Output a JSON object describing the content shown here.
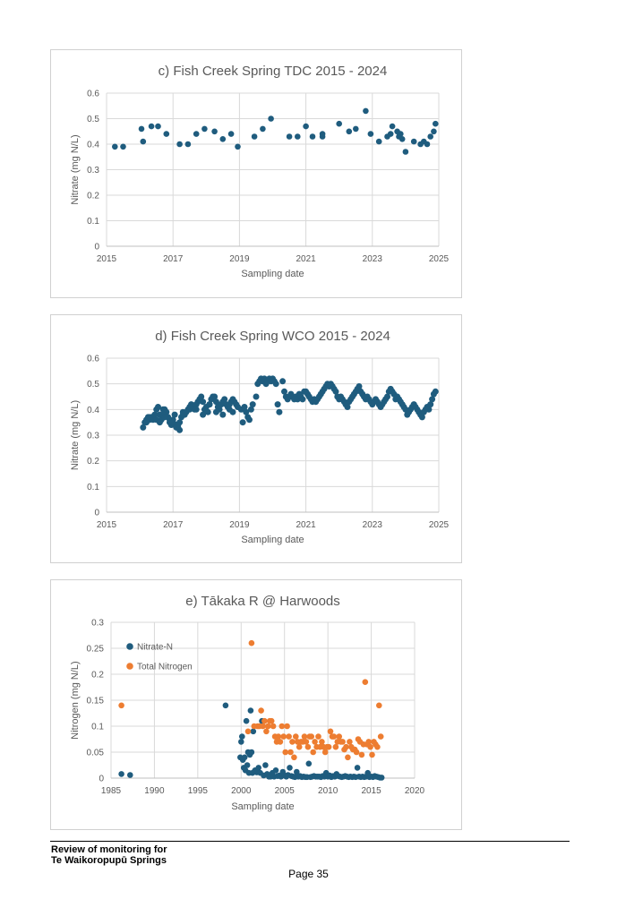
{
  "chart_data": [
    {
      "type": "scatter",
      "title": "c) Fish Creek Spring TDC 2015 - 2024",
      "xlabel": "Sampling date",
      "ylabel": "Nitrate (mg N/L)",
      "xlim": [
        2015,
        2025
      ],
      "ylim": [
        0,
        0.6
      ],
      "xticks": [
        "2015",
        "2017",
        "2019",
        "2021",
        "2023",
        "2025"
      ],
      "yticks": [
        "0",
        "0.1",
        "0.2",
        "0.3",
        "0.4",
        "0.5",
        "0.6"
      ],
      "grid": true,
      "color": "#1f5c7e",
      "series": [
        {
          "x": [
            2015.25,
            2015.5,
            2016.05,
            2016.1,
            2016.35,
            2016.55,
            2016.8,
            2017.2,
            2017.45,
            2017.7,
            2017.95,
            2018.25,
            2018.5,
            2018.75,
            2018.95,
            2019.45,
            2019.7,
            2019.95,
            2020.5,
            2020.75,
            2021.0,
            2021.2,
            2021.5,
            2021.5,
            2022.0,
            2022.3,
            2022.5,
            2022.8,
            2022.95,
            2023.2,
            2023.45,
            2023.55,
            2023.6,
            2023.75,
            2023.8,
            2023.85,
            2023.9,
            2024.0,
            2024.25,
            2024.45,
            2024.55,
            2024.65,
            2024.75,
            2024.85,
            2024.9
          ],
          "y": [
            0.39,
            0.39,
            0.46,
            0.41,
            0.47,
            0.47,
            0.44,
            0.4,
            0.4,
            0.44,
            0.46,
            0.45,
            0.42,
            0.44,
            0.39,
            0.43,
            0.46,
            0.5,
            0.43,
            0.43,
            0.47,
            0.43,
            0.44,
            0.43,
            0.48,
            0.45,
            0.46,
            0.53,
            0.44,
            0.41,
            0.43,
            0.44,
            0.47,
            0.45,
            0.43,
            0.44,
            0.42,
            0.37,
            0.41,
            0.4,
            0.41,
            0.4,
            0.43,
            0.45,
            0.48
          ]
        }
      ]
    },
    {
      "type": "scatter",
      "title": "d) Fish Creek Spring WCO 2015 - 2024",
      "xlabel": "Sampling date",
      "ylabel": "Nitrate (mg N/L)",
      "xlim": [
        2015,
        2025
      ],
      "ylim": [
        0,
        0.6
      ],
      "xticks": [
        "2015",
        "2017",
        "2019",
        "2021",
        "2023",
        "2025"
      ],
      "yticks": [
        "0",
        "0.1",
        "0.2",
        "0.3",
        "0.4",
        "0.5",
        "0.6"
      ],
      "grid": true,
      "color": "#1f5c7e",
      "series": [
        {
          "x": [
            2016.1,
            2016.15,
            2016.2,
            2016.25,
            2016.3,
            2016.35,
            2016.4,
            2016.45,
            2016.5,
            2016.55,
            2016.6,
            2016.65,
            2016.7,
            2016.75,
            2016.8,
            2016.85,
            2016.9,
            2016.95,
            2017.0,
            2017.05,
            2017.1,
            2017.15,
            2017.2,
            2017.25,
            2017.3,
            2017.35,
            2017.4,
            2017.45,
            2017.5,
            2017.55,
            2017.6,
            2017.65,
            2017.7,
            2017.75,
            2017.8,
            2017.85,
            2017.9,
            2017.95,
            2018.0,
            2018.05,
            2018.1,
            2018.15,
            2018.2,
            2018.25,
            2018.3,
            2018.35,
            2018.4,
            2018.45,
            2018.5,
            2018.55,
            2018.6,
            2018.65,
            2018.7,
            2018.75,
            2018.8,
            2018.85,
            2018.9,
            2018.95,
            2019.05,
            2019.1,
            2019.15,
            2019.2,
            2019.25,
            2019.3,
            2019.35,
            2019.4,
            2019.5,
            2019.55,
            2019.6,
            2019.65,
            2019.7,
            2019.75,
            2019.8,
            2019.85,
            2019.9,
            2019.95,
            2020.0,
            2020.05,
            2020.1,
            2020.15,
            2020.2,
            2020.3,
            2020.35,
            2020.4,
            2020.45,
            2020.5,
            2020.55,
            2020.6,
            2020.65,
            2020.7,
            2020.75,
            2020.8,
            2020.85,
            2020.9,
            2020.95,
            2021.0,
            2021.05,
            2021.1,
            2021.15,
            2021.2,
            2021.25,
            2021.3,
            2021.35,
            2021.4,
            2021.45,
            2021.5,
            2021.55,
            2021.6,
            2021.65,
            2021.7,
            2021.75,
            2021.8,
            2021.85,
            2021.9,
            2021.95,
            2022.0,
            2022.05,
            2022.1,
            2022.15,
            2022.2,
            2022.25,
            2022.3,
            2022.35,
            2022.4,
            2022.45,
            2022.5,
            2022.55,
            2022.6,
            2022.65,
            2022.7,
            2022.75,
            2022.8,
            2022.85,
            2022.9,
            2022.95,
            2023.0,
            2023.05,
            2023.1,
            2023.15,
            2023.2,
            2023.25,
            2023.3,
            2023.35,
            2023.4,
            2023.45,
            2023.5,
            2023.55,
            2023.6,
            2023.65,
            2023.7,
            2023.75,
            2023.8,
            2023.85,
            2023.9,
            2023.95,
            2024.0,
            2024.05,
            2024.1,
            2024.15,
            2024.2,
            2024.25,
            2024.3,
            2024.35,
            2024.4,
            2024.45,
            2024.5,
            2024.55,
            2024.6,
            2024.65,
            2024.7,
            2024.75,
            2024.8,
            2024.85,
            2024.9,
            2016.2,
            2016.3,
            2016.5,
            2016.7,
            2016.9,
            2017.05,
            2017.1,
            2017.2,
            2017.3,
            2017.5,
            2017.7,
            2017.9,
            2018.1,
            2018.3,
            2018.5,
            2018.7,
            2018.8,
            2016.6,
            2016.75,
            2017.0,
            2017.15
          ],
          "y": [
            0.33,
            0.35,
            0.36,
            0.37,
            0.36,
            0.37,
            0.36,
            0.38,
            0.4,
            0.41,
            0.38,
            0.36,
            0.4,
            0.4,
            0.39,
            0.37,
            0.36,
            0.34,
            0.36,
            0.38,
            0.34,
            0.33,
            0.32,
            0.37,
            0.39,
            0.38,
            0.39,
            0.4,
            0.4,
            0.42,
            0.41,
            0.4,
            0.42,
            0.43,
            0.44,
            0.45,
            0.43,
            0.4,
            0.41,
            0.39,
            0.42,
            0.44,
            0.45,
            0.45,
            0.43,
            0.41,
            0.4,
            0.42,
            0.43,
            0.44,
            0.42,
            0.41,
            0.42,
            0.43,
            0.44,
            0.43,
            0.42,
            0.41,
            0.4,
            0.35,
            0.41,
            0.39,
            0.37,
            0.36,
            0.4,
            0.42,
            0.45,
            0.5,
            0.51,
            0.52,
            0.51,
            0.52,
            0.5,
            0.51,
            0.52,
            0.51,
            0.52,
            0.51,
            0.5,
            0.42,
            0.39,
            0.51,
            0.47,
            0.45,
            0.44,
            0.45,
            0.46,
            0.45,
            0.44,
            0.45,
            0.44,
            0.46,
            0.45,
            0.44,
            0.47,
            0.47,
            0.46,
            0.45,
            0.44,
            0.43,
            0.44,
            0.43,
            0.44,
            0.45,
            0.46,
            0.47,
            0.48,
            0.49,
            0.5,
            0.49,
            0.5,
            0.49,
            0.48,
            0.47,
            0.45,
            0.44,
            0.45,
            0.44,
            0.43,
            0.42,
            0.41,
            0.43,
            0.44,
            0.45,
            0.46,
            0.47,
            0.48,
            0.49,
            0.47,
            0.46,
            0.45,
            0.44,
            0.45,
            0.44,
            0.43,
            0.42,
            0.43,
            0.44,
            0.43,
            0.42,
            0.41,
            0.42,
            0.43,
            0.44,
            0.45,
            0.47,
            0.48,
            0.47,
            0.46,
            0.44,
            0.45,
            0.44,
            0.43,
            0.42,
            0.41,
            0.4,
            0.38,
            0.39,
            0.4,
            0.41,
            0.42,
            0.41,
            0.4,
            0.39,
            0.38,
            0.37,
            0.39,
            0.4,
            0.41,
            0.4,
            0.42,
            0.44,
            0.46,
            0.47,
            0.35,
            0.37,
            0.36,
            0.38,
            0.35,
            0.34,
            0.33,
            0.35,
            0.38,
            0.41,
            0.4,
            0.38,
            0.42,
            0.39,
            0.38,
            0.4,
            0.39,
            0.35,
            0.37,
            0.35,
            0.34
          ]
        }
      ]
    },
    {
      "type": "scatter",
      "title": "e) Tākaka R @ Harwoods",
      "xlabel": "Sampling date",
      "ylabel": "Nitrogen (mg N/L)",
      "xlim": [
        1985,
        2020
      ],
      "ylim": [
        0,
        0.3
      ],
      "xticks": [
        "1985",
        "1990",
        "1995",
        "2000",
        "2005",
        "2010",
        "2015",
        "2020"
      ],
      "yticks": [
        "0",
        "0.05",
        "0.1",
        "0.15",
        "0.2",
        "0.25",
        "0.3"
      ],
      "grid": true,
      "legend": "top-left",
      "series": [
        {
          "name": "Nitrate-N",
          "color": "#1f5c7e",
          "x": [
            1986.2,
            1987.2,
            1998.2,
            1999.9,
            2000.0,
            2000.1,
            2000.2,
            2000.3,
            2000.4,
            2000.5,
            2000.6,
            2000.7,
            2000.8,
            2000.9,
            2001.0,
            2001.1,
            2001.2,
            2001.3,
            2001.4,
            2001.5,
            2001.6,
            2001.8,
            2002.0,
            2002.2,
            2002.4,
            2002.6,
            2002.8,
            2003.0,
            2003.2,
            2003.4,
            2003.6,
            2003.8,
            2004.0,
            2004.2,
            2004.4,
            2004.6,
            2004.8,
            2005.0,
            2005.2,
            2005.4,
            2005.6,
            2005.8,
            2006.0,
            2006.2,
            2006.4,
            2006.6,
            2006.8,
            2007.0,
            2007.2,
            2007.4,
            2007.6,
            2007.8,
            2008.0,
            2008.2,
            2008.4,
            2008.6,
            2008.8,
            2009.0,
            2009.2,
            2009.4,
            2009.6,
            2009.8,
            2010.0,
            2010.2,
            2010.4,
            2010.6,
            2010.8,
            2011.0,
            2011.2,
            2011.4,
            2011.6,
            2011.8,
            2012.0,
            2012.2,
            2012.4,
            2012.6,
            2012.8,
            2013.0,
            2013.2,
            2013.4,
            2013.6,
            2013.8,
            2014.0,
            2014.2,
            2014.4,
            2014.6,
            2014.8,
            2015.0,
            2015.2,
            2015.4,
            2015.6,
            2015.8,
            2016.0,
            2016.2
          ],
          "y": [
            0.008,
            0.006,
            0.14,
            0.04,
            0.07,
            0.08,
            0.035,
            0.02,
            0.04,
            0.015,
            0.11,
            0.025,
            0.05,
            0.01,
            0.045,
            0.13,
            0.05,
            0.01,
            0.09,
            0.012,
            0.015,
            0.011,
            0.02,
            0.01,
            0.11,
            0.005,
            0.025,
            0.008,
            0.003,
            0.003,
            0.01,
            0.003,
            0.015,
            0.004,
            0.005,
            0.003,
            0.012,
            0.005,
            0.003,
            0.006,
            0.02,
            0.004,
            0.003,
            0.002,
            0.012,
            0.003,
            0.004,
            0.002,
            0.003,
            0.002,
            0.002,
            0.028,
            0.002,
            0.003,
            0.004,
            0.003,
            0.003,
            0.003,
            0.002,
            0.004,
            0.003,
            0.01,
            0.003,
            0.005,
            0.002,
            0.004,
            0.003,
            0.008,
            0.004,
            0.003,
            0.002,
            0.003,
            0.004,
            0.003,
            0.002,
            0.003,
            0.002,
            0.003,
            0.002,
            0.02,
            0.003,
            0.002,
            0.003,
            0.002,
            0.003,
            0.01,
            0.002,
            0.003,
            0.002,
            0.004,
            0.003,
            0.002,
            0.001,
            0.001
          ]
        },
        {
          "name": "Total Nitrogen",
          "color": "#ed7d31",
          "x": [
            1986.2,
            2000.8,
            2001.2,
            2001.5,
            2001.9,
            2002.1,
            2002.3,
            2002.5,
            2002.7,
            2002.9,
            2003.1,
            2003.3,
            2003.5,
            2003.7,
            2003.9,
            2004.1,
            2004.3,
            2004.5,
            2004.7,
            2004.9,
            2005.1,
            2005.3,
            2005.5,
            2005.7,
            2005.9,
            2006.1,
            2006.3,
            2006.5,
            2006.7,
            2006.9,
            2007.1,
            2007.3,
            2007.5,
            2007.7,
            2007.9,
            2008.1,
            2008.3,
            2008.5,
            2008.7,
            2008.9,
            2009.1,
            2009.3,
            2009.5,
            2009.7,
            2009.9,
            2010.1,
            2010.3,
            2010.5,
            2010.7,
            2010.9,
            2011.1,
            2011.3,
            2011.5,
            2011.7,
            2011.9,
            2012.1,
            2012.3,
            2012.5,
            2012.7,
            2012.9,
            2013.1,
            2013.3,
            2013.5,
            2013.7,
            2013.9,
            2014.1,
            2014.3,
            2014.5,
            2014.7,
            2014.9,
            2015.1,
            2015.3,
            2015.5,
            2015.7,
            2015.9,
            2016.1
          ],
          "y": [
            0.14,
            0.09,
            0.26,
            0.1,
            0.1,
            0.1,
            0.13,
            0.1,
            0.11,
            0.09,
            0.1,
            0.11,
            0.11,
            0.1,
            0.08,
            0.07,
            0.08,
            0.07,
            0.1,
            0.08,
            0.05,
            0.1,
            0.08,
            0.05,
            0.07,
            0.04,
            0.08,
            0.07,
            0.06,
            0.07,
            0.07,
            0.08,
            0.07,
            0.06,
            0.08,
            0.08,
            0.05,
            0.07,
            0.06,
            0.08,
            0.06,
            0.07,
            0.06,
            0.05,
            0.06,
            0.06,
            0.09,
            0.08,
            0.08,
            0.06,
            0.07,
            0.08,
            0.07,
            0.07,
            0.055,
            0.06,
            0.04,
            0.07,
            0.06,
            0.055,
            0.055,
            0.05,
            0.075,
            0.07,
            0.045,
            0.065,
            0.185,
            0.065,
            0.07,
            0.06,
            0.045,
            0.07,
            0.065,
            0.06,
            0.14,
            0.08
          ]
        }
      ]
    }
  ],
  "footer": {
    "line1": "Review of monitoring for",
    "line2": "Te Waikoropupū Springs",
    "page": "Page 35"
  }
}
